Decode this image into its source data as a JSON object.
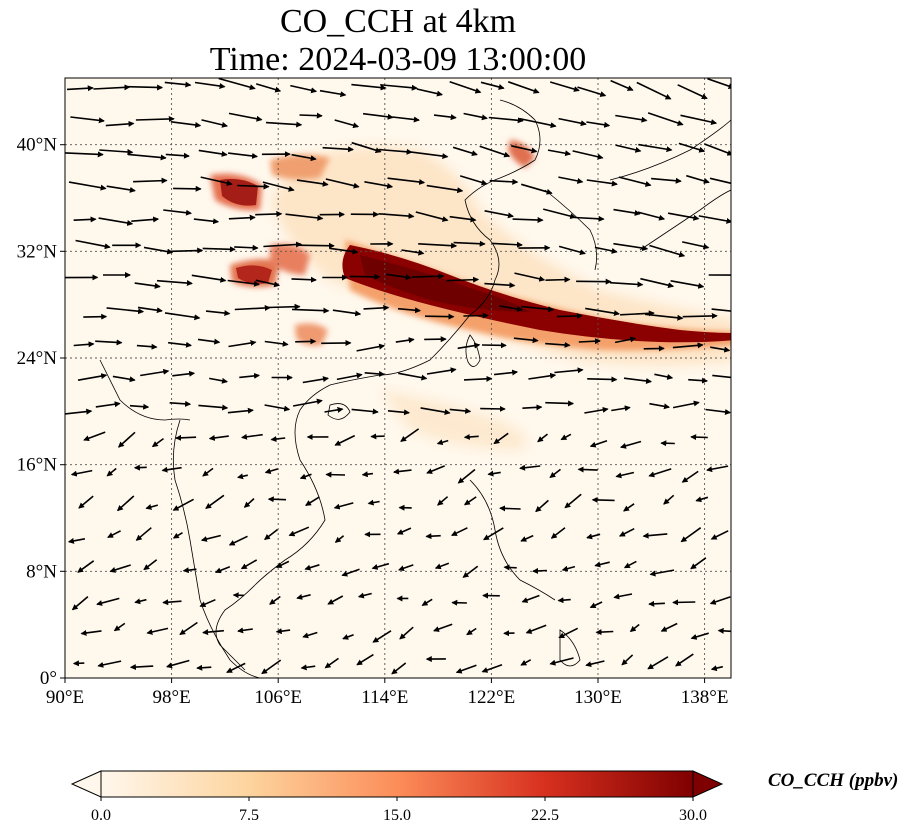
{
  "title": {
    "line1": "CO_CCH at 4km",
    "line2": "Time: 2024-03-09 13:00:00"
  },
  "map": {
    "projection": "PlateCarree",
    "lon_range": [
      90,
      140
    ],
    "lat_range": [
      0,
      45
    ],
    "xticks": [
      {
        "value": 90,
        "label": "90°E"
      },
      {
        "value": 98,
        "label": "98°E"
      },
      {
        "value": 106,
        "label": "106°E"
      },
      {
        "value": 114,
        "label": "114°E"
      },
      {
        "value": 122,
        "label": "122°E"
      },
      {
        "value": 130,
        "label": "130°E"
      },
      {
        "value": 138,
        "label": "138°E"
      }
    ],
    "yticks": [
      {
        "value": 0,
        "label": "0°"
      },
      {
        "value": 8,
        "label": "8°N"
      },
      {
        "value": 16,
        "label": "16°N"
      },
      {
        "value": 24,
        "label": "24°N"
      },
      {
        "value": 32,
        "label": "32°N"
      },
      {
        "value": 40,
        "label": "40°N"
      }
    ],
    "grid": "dotted",
    "field": "CO_CCH concentration, dominant plume band 27–31°N from 108°E to 140°E",
    "wind_vectors": "quiver arrows, westerly flow north of ~20°N, northeasterly flow in the south"
  },
  "colorbar": {
    "label": "CO_CCH (ppbv)",
    "ticks": [
      "0.0",
      "7.5",
      "15.0",
      "22.5",
      "30.0"
    ],
    "vmin": 0.0,
    "vmax": 30.0,
    "extend": "both",
    "colormap": "OrRd",
    "colors": [
      "#fff7ec",
      "#fdd49e",
      "#fc8d59",
      "#d7301f",
      "#7f0000"
    ]
  }
}
